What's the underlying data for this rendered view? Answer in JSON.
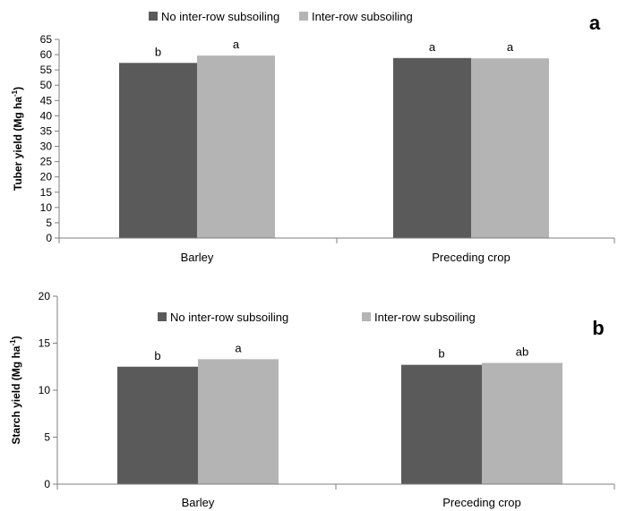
{
  "colors": {
    "no_subsoiling": "#5a5a5a",
    "inter_row_subsoiling": "#b4b4b4",
    "axis": "#7f7f7f"
  },
  "chart_data": [
    {
      "panel_label": "a",
      "type": "bar",
      "categories": [
        "Barley",
        "Preceding crop"
      ],
      "series": [
        {
          "name": "No  inter-row subsoiling",
          "values": [
            57.3,
            58.9
          ],
          "letters": [
            "b",
            "a"
          ]
        },
        {
          "name": "Inter-row subsoiling",
          "values": [
            59.7,
            58.8
          ],
          "letters": [
            "a",
            "a"
          ]
        }
      ],
      "ylabel_main": "Tuber yield (Mg ha",
      "ylabel_sup": "-1",
      "ylabel_close": ")",
      "ylim": [
        0,
        65
      ],
      "yticks": [
        0,
        5,
        10,
        15,
        20,
        25,
        30,
        35,
        40,
        45,
        50,
        55,
        60,
        65
      ],
      "grid": false,
      "legend_position": "top"
    },
    {
      "panel_label": "b",
      "type": "bar",
      "categories": [
        "Barley",
        "Preceding crop"
      ],
      "series": [
        {
          "name": "No  inter-row subsoiling",
          "values": [
            12.5,
            12.7
          ],
          "letters": [
            "b",
            "b"
          ]
        },
        {
          "name": "Inter-row subsoiling",
          "values": [
            13.3,
            12.9
          ],
          "letters": [
            "a",
            "ab"
          ]
        }
      ],
      "ylabel_main": "Starch yield (Mg ha",
      "ylabel_sup": "-1",
      "ylabel_close": ")",
      "ylim": [
        0,
        20
      ],
      "yticks": [
        0,
        5,
        10,
        15,
        20
      ],
      "grid": false,
      "legend_position": "top"
    }
  ]
}
